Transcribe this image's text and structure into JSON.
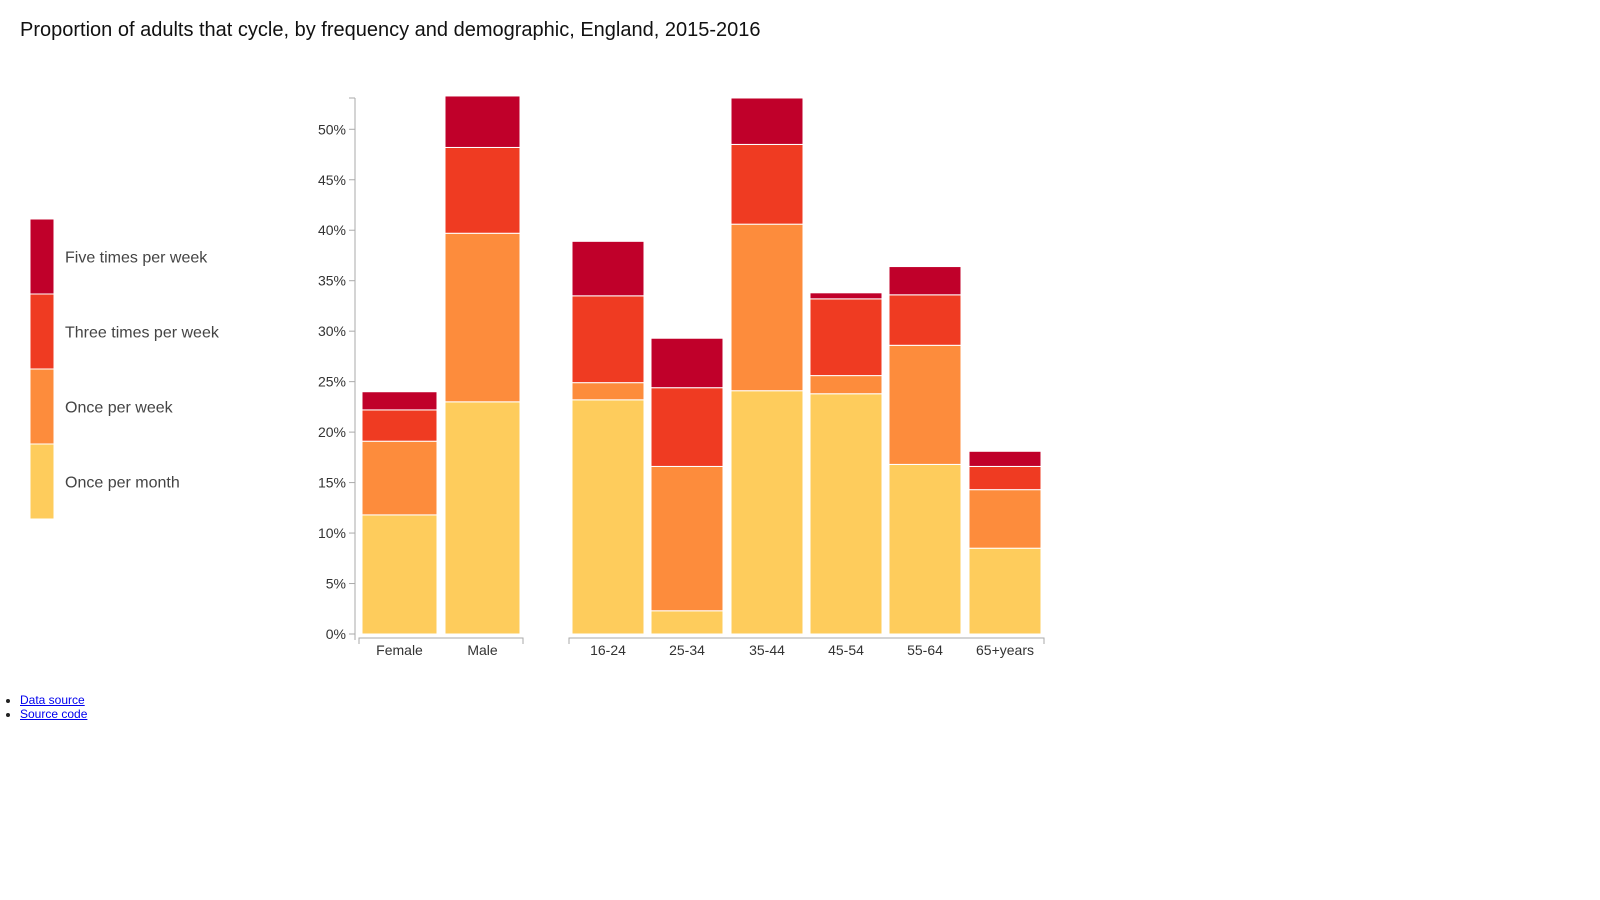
{
  "page": {
    "title": "Proportion of adults that cycle, by frequency and demographic, England, 2015-2016"
  },
  "links": [
    {
      "label": "Data source"
    },
    {
      "label": "Source code"
    }
  ],
  "colors": {
    "Five times per week": "#c0002a",
    "Three times per week": "#ef3b22",
    "Once per week": "#fd8c3c",
    "Once per month": "#fecc5c",
    "axis": "#aaaaaa",
    "tick_text": "#333333"
  },
  "chart_data": {
    "type": "bar",
    "stacked": true,
    "title": "Proportion of adults that cycle, by frequency and demographic, England, 2015-2016",
    "ylim": [
      0,
      53
    ],
    "y_ticks": [
      "0%",
      "5%",
      "10%",
      "15%",
      "20%",
      "25%",
      "30%",
      "35%",
      "40%",
      "45%",
      "50%"
    ],
    "y_tick_values": [
      0,
      5,
      10,
      15,
      20,
      25,
      30,
      35,
      40,
      45,
      50
    ],
    "legend_position": "left",
    "legend": [
      "Five times per week",
      "Three times per week",
      "Once per week",
      "Once per month"
    ],
    "groups": [
      {
        "name": "",
        "categories": [
          "Female",
          "Male"
        ]
      },
      {
        "name": "",
        "categories": [
          "16-24",
          "25-34",
          "35-44",
          "45-54",
          "55-64",
          "65+years"
        ]
      }
    ],
    "categories": [
      "Female",
      "Male",
      "16-24",
      "25-34",
      "35-44",
      "45-54",
      "55-64",
      "65+years"
    ],
    "series": [
      {
        "name": "Once per month",
        "values": [
          11.8,
          23.0,
          23.2,
          2.3,
          24.1,
          23.8,
          16.8,
          8.5
        ]
      },
      {
        "name": "Once per week",
        "values": [
          7.3,
          16.7,
          1.7,
          14.3,
          16.5,
          1.8,
          11.8,
          5.8
        ]
      },
      {
        "name": "Three times per week",
        "values": [
          3.1,
          8.5,
          8.6,
          7.8,
          7.9,
          7.6,
          5.0,
          2.3
        ]
      },
      {
        "name": "Five times per week",
        "values": [
          1.8,
          5.1,
          5.4,
          4.9,
          4.6,
          0.6,
          2.8,
          1.5
        ]
      }
    ]
  }
}
